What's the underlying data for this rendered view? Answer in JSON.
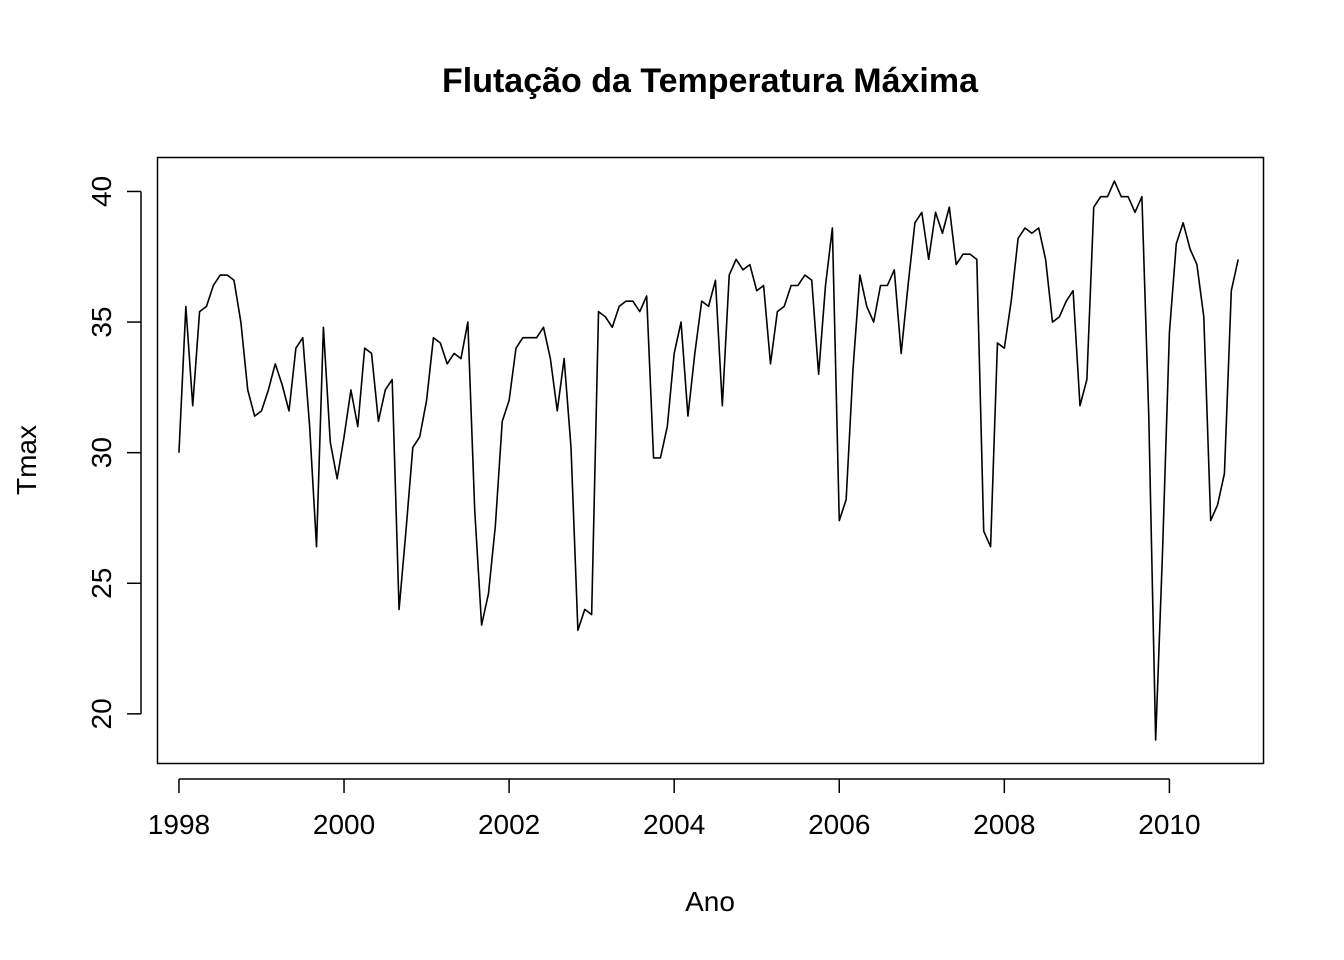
{
  "chart_data": {
    "type": "line",
    "title": "Flutação da Temperatura Máxima",
    "xlabel": "Ano",
    "ylabel": "Tmax",
    "xlim": [
      1997.74,
      2011.14
    ],
    "ylim": [
      18.1,
      41.3
    ],
    "x_ticks": [
      1998,
      2000,
      2002,
      2004,
      2006,
      2008,
      2010
    ],
    "x_tick_labels": [
      "1998",
      "2000",
      "2002",
      "2004",
      "2006",
      "2008",
      "2010"
    ],
    "y_ticks": [
      20,
      25,
      30,
      35,
      40
    ],
    "y_tick_labels": [
      "20",
      "25",
      "30",
      "35",
      "40"
    ],
    "grid": false,
    "series": [
      {
        "x_start": 1998,
        "x_step_months": 1,
        "values": [
          30.0,
          35.6,
          31.8,
          35.4,
          35.6,
          36.4,
          36.8,
          36.8,
          36.6,
          35.0,
          32.4,
          31.4,
          31.6,
          32.4,
          33.4,
          32.6,
          31.6,
          34.0,
          34.4,
          31.0,
          26.4,
          34.8,
          30.4,
          29.0,
          30.6,
          32.4,
          31.0,
          34.0,
          33.8,
          31.2,
          32.4,
          32.8,
          24.0,
          27.0,
          30.2,
          30.6,
          32.0,
          34.4,
          34.2,
          33.4,
          33.8,
          33.6,
          35.0,
          27.8,
          23.4,
          24.6,
          27.2,
          31.2,
          32.0,
          34.0,
          34.4,
          34.4,
          34.4,
          34.8,
          33.6,
          31.6,
          33.6,
          30.2,
          23.2,
          24.0,
          23.8,
          35.4,
          35.2,
          34.8,
          35.6,
          35.8,
          35.8,
          35.4,
          36.0,
          29.8,
          29.8,
          31.0,
          33.8,
          35.0,
          31.4,
          33.8,
          35.8,
          35.6,
          36.6,
          31.8,
          36.8,
          37.4,
          37.0,
          37.2,
          36.2,
          36.4,
          33.4,
          35.4,
          35.6,
          36.4,
          36.4,
          36.8,
          36.6,
          33.0,
          36.4,
          38.6,
          27.4,
          28.2,
          33.2,
          36.8,
          35.6,
          35.0,
          36.4,
          36.4,
          37.0,
          33.8,
          36.4,
          38.8,
          39.2,
          37.4,
          39.2,
          38.4,
          39.4,
          37.2,
          37.6,
          37.6,
          37.4,
          27.0,
          26.4,
          34.2,
          34.0,
          35.8,
          38.2,
          38.6,
          38.4,
          38.6,
          37.4,
          35.0,
          35.2,
          35.8,
          36.2,
          31.8,
          32.8,
          39.4,
          39.8,
          39.8,
          40.4,
          39.8,
          39.8,
          39.2,
          39.8,
          31.4,
          19.0,
          26.2,
          34.6,
          38.0,
          38.8,
          37.8,
          37.2,
          35.2,
          27.4,
          28.0,
          29.2,
          36.2,
          37.4
        ]
      }
    ]
  }
}
